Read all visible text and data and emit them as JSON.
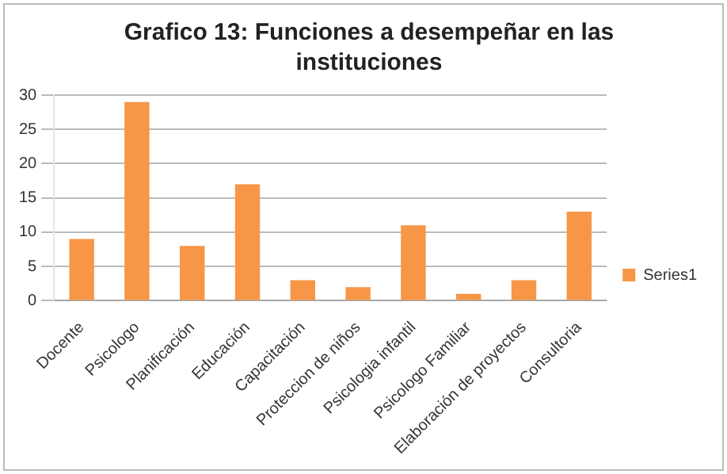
{
  "chart_data": {
    "type": "bar",
    "title": "Grafico 13: Funciones a desempeñar en las instituciones",
    "categories": [
      "Docente",
      "Psicologo",
      "Planificación",
      "Educación",
      "Capacitación",
      "Proteccion de niños",
      "Psicologia infantil",
      "Psicologo Familiar",
      "Elaboración de proyectos",
      "Consultoria"
    ],
    "series": [
      {
        "name": "Series1",
        "color": "#f79646",
        "values": [
          9,
          29,
          8,
          17,
          3,
          2,
          11,
          1,
          3,
          13
        ]
      }
    ],
    "ylim": [
      0,
      30
    ],
    "yticks": [
      0,
      5,
      10,
      15,
      20,
      25,
      30
    ],
    "grid": "y",
    "legend": "right"
  }
}
